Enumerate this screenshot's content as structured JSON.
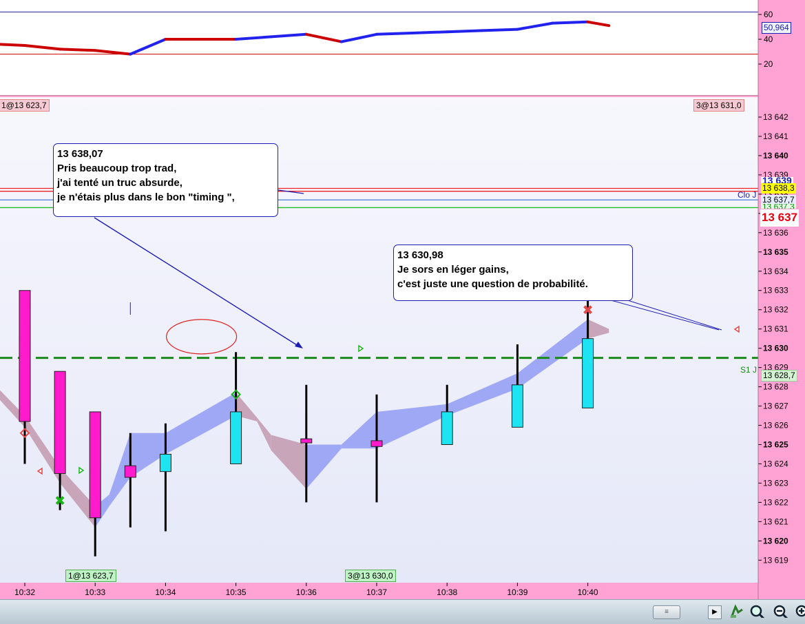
{
  "chart_data": [
    {
      "type": "line",
      "ylim": [
        0,
        70
      ],
      "y_ticks": [
        60,
        40,
        20
      ],
      "reference_lines": [
        62,
        28
      ],
      "current_value_label": "50,964",
      "x": [
        "10:31.6",
        "10:32",
        "10:32.5",
        "10:33",
        "10:33.5",
        "10:34",
        "10:34.5",
        "10:35",
        "10:35.5",
        "10:36",
        "10:36.5",
        "10:37",
        "10:37.5",
        "10:38",
        "10:38.5",
        "10:39",
        "10:39.5",
        "10:40",
        "10:40.3"
      ],
      "values": [
        36,
        35,
        32,
        31,
        28,
        40,
        40,
        40,
        42,
        44,
        38,
        44,
        45,
        46,
        47,
        48,
        53,
        54,
        51
      ],
      "segment_colors": [
        "#cc0000",
        "#cc0000",
        "#cc0000",
        "#cc0000",
        "#2222ee",
        "#cc0000",
        "#cc0000",
        "#2222ee",
        "#2222ee",
        "#cc0000",
        "#2222ee",
        "#2222ee",
        "#2222ee",
        "#2222ee",
        "#2222ee",
        "#2222ee",
        "#2222ee",
        "#cc0000"
      ]
    },
    {
      "type": "candlestick",
      "ylim": [
        13618.1,
        13643.0
      ],
      "y_ticks": [
        13642,
        13641,
        13640,
        13639,
        13638,
        13637,
        13636,
        13635,
        13634,
        13633,
        13632,
        13631,
        13630,
        13629,
        13628,
        13627,
        13626,
        13625,
        13624,
        13623,
        13622,
        13621,
        13620,
        13619
      ],
      "y_tick_labels": [
        "13 642",
        "13 641",
        "13 640",
        "13 639",
        "13 638",
        "13 637",
        "13 636",
        "13 635",
        "13 634",
        "13 633",
        "13 632",
        "13 631",
        "13 630",
        "13 629",
        "13 628",
        "13 627",
        "13 626",
        "13 625",
        "13 624",
        "13 623",
        "13 622",
        "13 621",
        "13 620",
        "13 619"
      ],
      "y_bold_ticks": [
        13640,
        13635,
        13630,
        13625,
        13620
      ],
      "x_ticks": [
        "10:32",
        "10:33",
        "10:34",
        "10:35",
        "10:36",
        "10:37",
        "10:38",
        "10:39",
        "10:40"
      ],
      "candles": [
        {
          "t": "10:32",
          "open": 13626.2,
          "high": 13633.0,
          "low": 13624.0,
          "close": 13633.0,
          "color": "#ff1acb"
        },
        {
          "t": "10:32.5",
          "open": 13623.5,
          "high": 13628.8,
          "low": 13621.6,
          "close": 13628.8,
          "color": "#ff1acb"
        },
        {
          "t": "10:33",
          "open": 13621.2,
          "high": 13626.7,
          "low": 13619.2,
          "close": 13626.7,
          "color": "#ff1acb"
        },
        {
          "t": "10:33.5",
          "open": 13623.3,
          "high": 13625.6,
          "low": 13620.7,
          "close": 13623.9,
          "color": "#ff1acb"
        },
        {
          "t": "10:34",
          "open": 13624.5,
          "high": 13626.1,
          "low": 13620.5,
          "close": 13623.6,
          "color": "#1ee3f0"
        },
        {
          "t": "10:35",
          "open": 13626.7,
          "high": 13629.8,
          "low": 13624.0,
          "close": 13624.0,
          "color": "#1ee3f0"
        },
        {
          "t": "10:36",
          "open": 13625.3,
          "high": 13628.1,
          "low": 13622.0,
          "close": 13625.1,
          "color": "#ff1acb"
        },
        {
          "t": "10:37",
          "open": 13625.2,
          "high": 13627.6,
          "low": 13622.0,
          "close": 13624.9,
          "color": "#ff1acb"
        },
        {
          "t": "10:38",
          "open": 13626.7,
          "high": 13628.1,
          "low": 13625.0,
          "close": 13625.0,
          "color": "#1ee3f0"
        },
        {
          "t": "10:39",
          "open": 13628.1,
          "high": 13630.2,
          "low": 13625.9,
          "close": 13625.9,
          "color": "#1ee3f0"
        },
        {
          "t": "10:40",
          "open": 13630.5,
          "high": 13632.5,
          "low": 13626.9,
          "close": 13626.9,
          "color": "#1ee3f0"
        }
      ],
      "cloud": [
        {
          "t": "10:31.6",
          "a": 13628.0,
          "b": 13627.5
        },
        {
          "t": "10:32",
          "a": 13626.5,
          "b": 13625.9
        },
        {
          "t": "10:32.5",
          "a": 13623.8,
          "b": 13623.0
        },
        {
          "t": "10:33",
          "a": 13621.8,
          "b": 13620.7
        },
        {
          "t": "10:33.2",
          "a": 13622.4,
          "b": 13621.8
        },
        {
          "t": "10:33.5",
          "a": 13625.6,
          "b": 13623.3
        },
        {
          "t": "10:34",
          "a": 13625.6,
          "b": 13624.5
        },
        {
          "t": "10:35",
          "a": 13627.7,
          "b": 13626.5
        },
        {
          "t": "10:35.3",
          "a": 13626.4,
          "b": 13626.2
        },
        {
          "t": "10:35.5",
          "a": 13625.5,
          "b": 13624.7
        },
        {
          "t": "10:36",
          "a": 13625.0,
          "b": 13622.7
        },
        {
          "t": "10:36.5",
          "a": 13625.0,
          "b": 13624.8
        },
        {
          "t": "10:37",
          "a": 13626.7,
          "b": 13624.8
        },
        {
          "t": "10:38",
          "a": 13627.1,
          "b": 13626.5
        },
        {
          "t": "10:39",
          "a": 13628.7,
          "b": 13627.9
        },
        {
          "t": "10:40",
          "a": 13631.5,
          "b": 13630.5
        },
        {
          "t": "10:40.3",
          "a": 13631.0,
          "b": 13630.8
        }
      ],
      "cloud_colors": {
        "down": "#c9a5b9",
        "up": "#9fa8f5"
      },
      "horizontal_lines": [
        {
          "y": 13638.3,
          "color": "#ee2222"
        },
        {
          "y": 13638.15,
          "color": "#ee2222"
        },
        {
          "y": 13637.7,
          "color": "#4a7ad6"
        },
        {
          "y": 13637.3,
          "color": "#22bb22"
        }
      ],
      "support_line": {
        "y": 13629.5,
        "color": "#1a8a1a",
        "label": "S1 J"
      },
      "line_label_clo": "Clo J",
      "price_labels": [
        {
          "text": "13 639",
          "color": "#1d1db5",
          "bg": "#ffffff"
        },
        {
          "text": "13 638,3",
          "color": "#000000",
          "bg": "#ffff00"
        },
        {
          "text": "13 637,7",
          "color": "#000000",
          "bg": "#e6ecff"
        },
        {
          "text": "13 637,3",
          "color": "#008800",
          "bg": "#e6ffe6"
        },
        {
          "text": "13 637",
          "color": "#e8000e",
          "bg": "#ffffff"
        },
        {
          "text": "13 628,7",
          "color": "#000000",
          "bg": "#d2f2d2"
        }
      ],
      "markers": [
        {
          "t": "10:32",
          "y": 13625.6,
          "shape": "diamond",
          "color": "#e34848"
        },
        {
          "t": "10:32.5",
          "y": 13622.1,
          "shape": "cross",
          "color": "#19b519"
        },
        {
          "t": "10:35",
          "y": 13627.6,
          "shape": "diamond",
          "color": "#19b519"
        },
        {
          "t": "10:40",
          "y": 13632.0,
          "shape": "cross",
          "color": "#e34848"
        }
      ],
      "ellipse": {
        "t": "10:35",
        "y": 13630.6
      }
    }
  ],
  "tags": {
    "top_left": "1@13 623,7",
    "top_right": "3@13 631,0",
    "bottom_left": "1@13 623,7",
    "bottom_mid": "3@13 630,0"
  },
  "callouts": [
    {
      "lines": [
        "13 638,07",
        "Pris beaucoup trop trad,",
        "j'ai tenté un truc absurde,",
        "je n'étais plus dans le bon \"timing \","
      ]
    },
    {
      "lines": [
        "13 630,98",
        "Je sors en léger gains,",
        "c'est juste une question de probabilité."
      ]
    }
  ]
}
